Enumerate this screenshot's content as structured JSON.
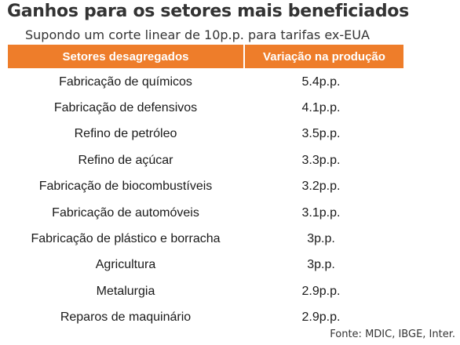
{
  "title": "Ganhos para os setores mais beneficiados",
  "subtitle": "Supondo um corte linear de 10p.p. para tarifas ex-EUA",
  "source": "Fonte: MDIC, IBGE, Inter.",
  "colors": {
    "header_bg": "#ee7d2a",
    "header_text": "#ffffff"
  },
  "chart_data": {
    "type": "table",
    "columns": [
      "Setores desagregados",
      "Variação na produção"
    ],
    "rows": [
      {
        "sector": "Fabricação de químicos",
        "value": "5.4p.p."
      },
      {
        "sector": "Fabricação de defensivos",
        "value": "4.1p.p."
      },
      {
        "sector": "Refino de petróleo",
        "value": "3.5p.p."
      },
      {
        "sector": "Refino de açúcar",
        "value": "3.3p.p."
      },
      {
        "sector": "Fabricação de biocombustíveis",
        "value": "3.2p.p."
      },
      {
        "sector": "Fabricação de automóveis",
        "value": "3.1p.p."
      },
      {
        "sector": "Fabricação de plástico e borracha",
        "value": "3p.p."
      },
      {
        "sector": "Agricultura",
        "value": "3p.p."
      },
      {
        "sector": "Metalurgia",
        "value": "2.9p.p."
      },
      {
        "sector": "Reparos de maquinário",
        "value": "2.9p.p."
      }
    ]
  }
}
